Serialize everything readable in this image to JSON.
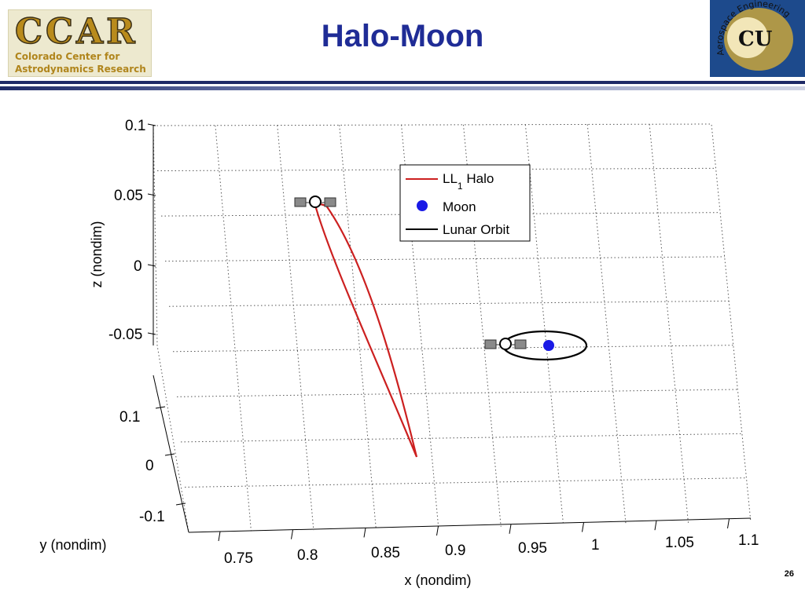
{
  "slide": {
    "title": "Halo-Moon",
    "page_number": "26",
    "logo_left": {
      "text": "CCAR",
      "line1": "Colorado Center for",
      "line2": "Astrodynamics Research"
    },
    "logo_right": {
      "monogram": "CU",
      "arc_text": "Aerospace Engineering"
    }
  },
  "chart_data": {
    "type": "line",
    "projection": "3d",
    "title": "",
    "xlabel": "x (nondim)",
    "ylabel": "y (nondim)",
    "zlabel": "z (nondim)",
    "xlim": [
      0.7,
      1.1
    ],
    "ylim": [
      -0.1,
      0.1
    ],
    "zlim": [
      -0.1,
      0.1
    ],
    "x_ticks": [
      "0.75",
      "0.8",
      "0.85",
      "0.9",
      "0.95",
      "1",
      "1.05",
      "1.1"
    ],
    "y_ticks": [
      "0.1",
      "0",
      "-0.1"
    ],
    "z_ticks": [
      "0.1",
      "0.05",
      "0",
      "-0.05"
    ],
    "grid": true,
    "legend_position": "top-right",
    "series": [
      {
        "name": "LL",
        "subscript": "1",
        "suffix": " Halo",
        "color": "#cc2020",
        "style": "line",
        "x": [
          0.81,
          0.83,
          0.85,
          0.88,
          0.86,
          0.84,
          0.82,
          0.81
        ],
        "y": [
          0.0,
          0.02,
          0.04,
          0.08,
          0.05,
          0.03,
          0.01,
          0.0
        ],
        "z": [
          0.05,
          0.02,
          -0.01,
          -0.08,
          -0.03,
          0.0,
          0.03,
          0.05
        ]
      },
      {
        "name": "Moon",
        "color": "#1a1ae6",
        "style": "marker",
        "x": [
          0.988
        ],
        "y": [
          0.0
        ],
        "z": [
          -0.05
        ]
      },
      {
        "name": "Lunar Orbit",
        "color": "#000000",
        "style": "line",
        "x": [
          0.96,
          0.988,
          1.015,
          0.988,
          0.96
        ],
        "y": [
          0.0,
          0.0,
          0.0,
          0.0,
          0.0
        ],
        "z": [
          -0.05,
          -0.06,
          -0.05,
          -0.04,
          -0.05
        ]
      }
    ],
    "annotations": [
      {
        "kind": "spacecraft",
        "near_series": "LL1 Halo"
      },
      {
        "kind": "spacecraft",
        "near_series": "Lunar Orbit"
      }
    ]
  }
}
